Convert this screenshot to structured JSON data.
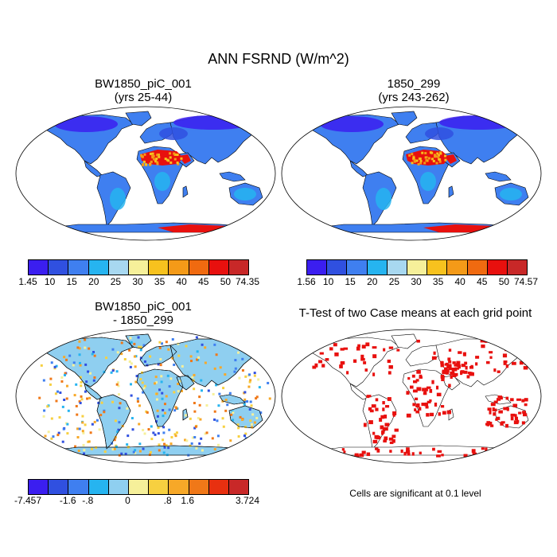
{
  "title": "ANN FSRND (W/m^2)",
  "panels": [
    {
      "title_line1": "BW1850_piC_001",
      "title_line2": "(yrs 25-44)"
    },
    {
      "title_line1": "1850_299",
      "title_line2": "(yrs 243-262)"
    },
    {
      "title_line1": "BW1850_piC_001",
      "title_line2": "- 1850_299"
    },
    {
      "title_line1": "T-Test of two Case means at each grid point",
      "title_line2": ""
    }
  ],
  "colorbars": [
    {
      "labels": [
        "1.45",
        "10",
        "15",
        "20",
        "25",
        "30",
        "35",
        "40",
        "45",
        "50",
        "74.35"
      ],
      "colors": [
        "#3b1ef0",
        "#3050e0",
        "#3f7ff0",
        "#26b4f0",
        "#a8d8f0",
        "#f6f09a",
        "#f7c21e",
        "#f49a18",
        "#f06a10",
        "#e8100e",
        "#c82828"
      ]
    },
    {
      "labels": [
        "1.56",
        "10",
        "15",
        "20",
        "25",
        "30",
        "35",
        "40",
        "45",
        "50",
        "74.57"
      ],
      "colors": [
        "#3b1ef0",
        "#3050e0",
        "#3f7ff0",
        "#26b4f0",
        "#a8d8f0",
        "#f6f09a",
        "#f7c21e",
        "#f49a18",
        "#f06a10",
        "#e8100e",
        "#c82828"
      ]
    },
    {
      "labels": [
        "-7.457",
        "-1.6",
        "-.8",
        "0",
        ".8",
        "1.6",
        "3.724"
      ],
      "colors": [
        "#3b1ef0",
        "#3050e0",
        "#3f7ff0",
        "#26b4f0",
        "#8fcff0",
        "#f6f09a",
        "#f7d040",
        "#f7a828",
        "#f07818",
        "#e83010",
        "#c82828"
      ]
    }
  ],
  "significance_note": "Cells are significant at 0.1 level",
  "palette": {
    "land_base": "#3f7ff0",
    "desert": "#e8100e",
    "significant": "#e8100e"
  }
}
